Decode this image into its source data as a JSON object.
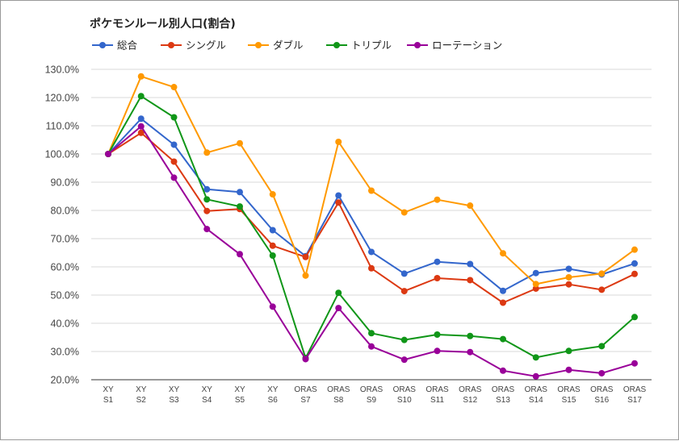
{
  "chart_data": {
    "type": "line",
    "title": "ポケモンルール別人口(割合)",
    "xlabel": "",
    "ylabel": "",
    "ylim": [
      20,
      130
    ],
    "yticks": [
      "130.0%",
      "120.0%",
      "110.0%",
      "100.0%",
      "90.0%",
      "80.0%",
      "70.0%",
      "60.0%",
      "50.0%",
      "40.0%",
      "30.0%",
      "20.0%"
    ],
    "ytick_values": [
      130,
      120,
      110,
      100,
      90,
      80,
      70,
      60,
      50,
      40,
      30,
      20
    ],
    "categories": [
      [
        "XY",
        "S1"
      ],
      [
        "XY",
        "S2"
      ],
      [
        "XY",
        "S3"
      ],
      [
        "XY",
        "S4"
      ],
      [
        "XY",
        "S5"
      ],
      [
        "XY",
        "S6"
      ],
      [
        "ORAS",
        "S7"
      ],
      [
        "ORAS",
        "S8"
      ],
      [
        "ORAS",
        "S9"
      ],
      [
        "ORAS",
        "S10"
      ],
      [
        "ORAS",
        "S11"
      ],
      [
        "ORAS",
        "S12"
      ],
      [
        "ORAS",
        "S13"
      ],
      [
        "ORAS",
        "S14"
      ],
      [
        "ORAS",
        "S15"
      ],
      [
        "ORAS",
        "S16"
      ],
      [
        "ORAS",
        "S17"
      ]
    ],
    "legend_position": "top-left",
    "grid": true,
    "series": [
      {
        "name": "総合",
        "color": "#3366cc",
        "values": [
          100,
          112.5,
          103.3,
          87.5,
          86.5,
          73,
          63.8,
          85.3,
          65.3,
          57.6,
          61.8,
          61,
          51.5,
          57.8,
          59.3,
          57.3,
          61.2
        ]
      },
      {
        "name": "シングル",
        "color": "#dc3912",
        "values": [
          100,
          107.5,
          97.3,
          79.8,
          80.5,
          67.5,
          63.5,
          82.8,
          59.5,
          51.4,
          56,
          55.3,
          47.3,
          52.3,
          53.8,
          51.9,
          57.5
        ]
      },
      {
        "name": "ダブル",
        "color": "#ff9900",
        "values": [
          100,
          127.5,
          123.7,
          100.5,
          103.8,
          85.7,
          56.9,
          104.3,
          87,
          79.3,
          83.8,
          81.7,
          64.8,
          53.9,
          56.3,
          57.6,
          66.1
        ]
      },
      {
        "name": "トリプル",
        "color": "#109618",
        "values": [
          100,
          120.5,
          113,
          83.9,
          81.4,
          64,
          27.7,
          50.8,
          36.5,
          34.1,
          36,
          35.5,
          34.4,
          27.9,
          30.2,
          31.9,
          42.2
        ]
      },
      {
        "name": "ローテーション",
        "color": "#990099",
        "values": [
          100,
          109.8,
          91.6,
          73.4,
          64.5,
          45.9,
          27.3,
          45.4,
          31.8,
          27.1,
          30.2,
          29.8,
          23.2,
          21.2,
          23.5,
          22.3,
          25.8
        ]
      }
    ]
  }
}
